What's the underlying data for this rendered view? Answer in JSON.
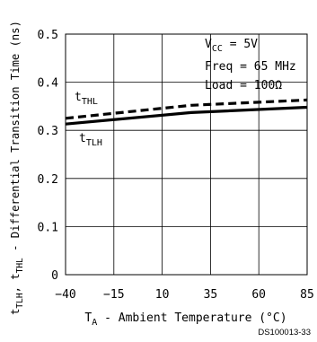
{
  "chart_data": {
    "type": "line",
    "xlabel_main": "T",
    "xlabel_sub": "A",
    "xlabel_rest": " - Ambient Temperature (°C)",
    "ylabel_parts": [
      {
        "t": "t",
        "sub": false
      },
      {
        "t": "TLH",
        "sub": true
      },
      {
        "t": ", t",
        "sub": false
      },
      {
        "t": "THL",
        "sub": true
      },
      {
        "t": " - Differential Transition Time (ns)",
        "sub": false
      }
    ],
    "xlim": [
      -40,
      85
    ],
    "ylim": [
      0,
      0.5
    ],
    "xticks": [
      -40,
      -15,
      10,
      35,
      60,
      85
    ],
    "xtick_labels": [
      "−40",
      "−15",
      "10",
      "35",
      "60",
      "85"
    ],
    "yticks": [
      0,
      0.1,
      0.2,
      0.3,
      0.4,
      0.5
    ],
    "ytick_labels": [
      "0",
      "0.1",
      "0.2",
      "0.3",
      "0.4",
      "0.5"
    ],
    "grid": true,
    "series": [
      {
        "name": "tTHL",
        "name_main": "t",
        "name_sub": "THL",
        "style": "dashed",
        "x": [
          -40,
          25,
          85
        ],
        "y": [
          0.325,
          0.352,
          0.363
        ]
      },
      {
        "name": "tTLH",
        "name_main": "t",
        "name_sub": "TLH",
        "style": "solid",
        "x": [
          -40,
          25,
          85
        ],
        "y": [
          0.313,
          0.337,
          0.348
        ]
      }
    ],
    "conditions": [
      {
        "main": "V",
        "sub": "CC",
        "rest": " = 5V"
      },
      {
        "main": "Freq = 65 MHz",
        "sub": "",
        "rest": ""
      },
      {
        "main": "Load = 100Ω",
        "sub": "",
        "rest": ""
      }
    ],
    "footnote": "DS100013-33"
  }
}
